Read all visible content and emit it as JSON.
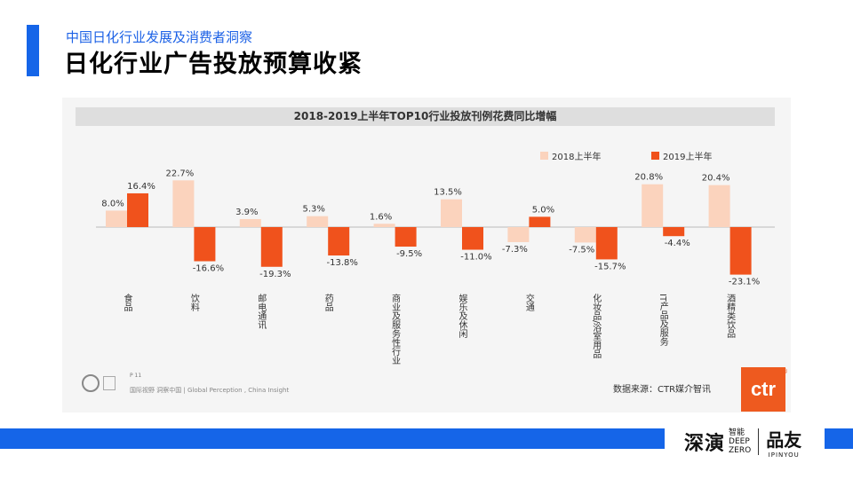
{
  "header": {
    "subtitle": "中国日化行业发展及消费者洞察",
    "title": "日化行业广告投放预算收紧"
  },
  "chart_data": {
    "type": "bar",
    "title": "2018-2019上半年TOP10行业投放刊例花费同比增幅",
    "categories": [
      "食品",
      "饮料",
      "邮电通讯",
      "药品",
      "商业及服务性行业",
      "娱乐及休闲",
      "交通",
      "化妆品/浴室用品",
      "IT产品及服务",
      "酒精类饮品"
    ],
    "series": [
      {
        "name": "2018上半年",
        "color": "#fbd3bd",
        "values": [
          8.0,
          22.7,
          3.9,
          5.3,
          1.6,
          13.5,
          -7.3,
          -7.5,
          20.8,
          20.4
        ],
        "labels": [
          "8.0%",
          "22.7%",
          "3.9%",
          "5.3%",
          "1.6%",
          "13.5%",
          "-7.3%",
          "-7.5%",
          "20.8%",
          "20.4%"
        ]
      },
      {
        "name": "2019上半年",
        "color": "#f0521c",
        "values": [
          16.4,
          -16.6,
          -19.3,
          -13.8,
          -9.5,
          -11.0,
          5.0,
          -15.7,
          -4.4,
          -23.1
        ],
        "labels": [
          "16.4%",
          "-16.6%",
          "-19.3%",
          "-13.8%",
          "-9.5%",
          "-11.0%",
          "5.0%",
          "-15.7%",
          "-4.4%",
          "-23.1%"
        ]
      }
    ],
    "legend_position": "top-right",
    "grid": false
  },
  "footer": {
    "page": "P 11",
    "note": "国际视野  洞察中国 | Global Perception , China Insight",
    "source": "数据来源：CTR媒介智讯",
    "logo_text": "ctr",
    "logo_reg": "®"
  },
  "brand": {
    "deep": "深演",
    "deep_small_1": "智能",
    "deep_small_2": "DEEP",
    "deep_small_3": "ZERO",
    "pinyou": "品友",
    "pinyou_en": "IPINYOU"
  }
}
